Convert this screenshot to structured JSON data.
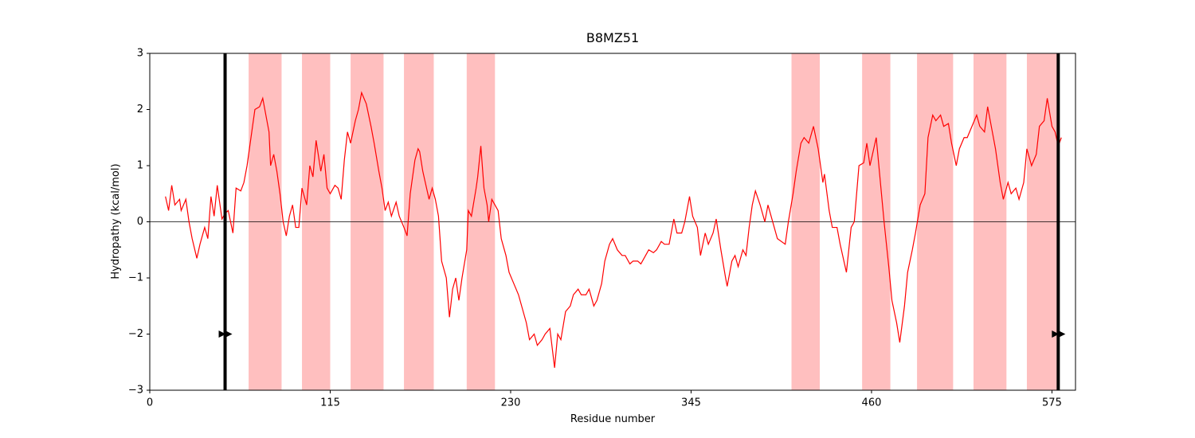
{
  "chart_data": {
    "type": "line",
    "title": "B8MZ51",
    "xlabel": "Residue number",
    "ylabel": "Hydropathy (kcal/mol)",
    "color": "#ff0000",
    "xlim": [
      0,
      590
    ],
    "ylim": [
      -3,
      3
    ],
    "xticks": [
      0,
      115,
      230,
      345,
      460,
      575
    ],
    "yticks": [
      {
        "value": -3,
        "label": "−3"
      },
      {
        "value": -2,
        "label": "−2"
      },
      {
        "value": -1,
        "label": "−1"
      },
      0,
      1,
      2,
      3
    ],
    "hline": 0,
    "shade_color": "#ffbfbf",
    "shaded_regions": [
      [
        63,
        84
      ],
      [
        97,
        115
      ],
      [
        128,
        149
      ],
      [
        162,
        181
      ],
      [
        202,
        220
      ],
      [
        409,
        427
      ],
      [
        454,
        472
      ],
      [
        489,
        512
      ],
      [
        525,
        546
      ],
      [
        559,
        579
      ]
    ],
    "vlines": [
      48,
      579
    ],
    "markers": [
      {
        "x": 48,
        "y": -2
      },
      {
        "x": 579,
        "y": -2
      }
    ],
    "x": [
      10,
      12,
      14,
      16,
      19,
      20,
      23,
      25,
      27,
      30,
      32,
      35,
      37,
      39,
      41,
      43,
      46,
      48,
      50,
      53,
      55,
      58,
      60,
      62,
      65,
      67,
      70,
      72,
      74,
      76,
      77,
      79,
      81,
      83,
      85,
      87,
      89,
      91,
      93,
      95,
      97,
      100,
      102,
      104,
      106,
      109,
      111,
      113,
      115,
      118,
      120,
      122,
      124,
      126,
      128,
      131,
      133,
      135,
      138,
      141,
      143,
      146,
      148,
      150,
      152,
      154,
      157,
      159,
      162,
      164,
      166,
      169,
      171,
      172,
      174,
      176,
      178,
      180,
      182,
      184,
      186,
      189,
      191,
      193,
      195,
      197,
      199,
      202,
      203,
      205,
      208,
      209,
      211,
      213,
      215,
      216,
      218,
      222,
      224,
      227,
      229,
      232,
      235,
      237,
      240,
      242,
      245,
      247,
      250,
      252,
      255,
      258,
      260,
      262,
      265,
      268,
      270,
      273,
      275,
      278,
      280,
      283,
      285,
      288,
      290,
      293,
      295,
      298,
      301,
      303,
      306,
      308,
      311,
      313,
      316,
      318,
      321,
      323,
      326,
      328,
      331,
      334,
      336,
      339,
      341,
      344,
      346,
      349,
      351,
      354,
      356,
      359,
      361,
      364,
      367,
      368,
      371,
      373,
      375,
      378,
      380,
      382,
      384,
      386,
      389,
      392,
      394,
      396,
      400,
      405,
      407,
      410,
      412,
      415,
      417,
      420,
      423,
      426,
      429,
      430,
      433,
      435,
      438,
      440,
      444,
      447,
      449,
      452,
      455,
      457,
      459,
      463,
      466,
      468,
      471,
      473,
      476,
      478,
      481,
      483,
      486,
      488,
      491,
      494,
      496,
      499,
      501,
      504,
      506,
      509,
      511,
      514,
      516,
      519,
      521,
      524,
      527,
      529,
      532,
      534,
      537,
      539,
      542,
      544,
      547,
      549,
      552,
      554,
      557,
      559,
      562,
      565,
      567,
      570,
      572,
      575,
      577,
      579,
      581
    ],
    "values": [
      0.45,
      0.2,
      0.65,
      0.3,
      0.4,
      0.2,
      0.4,
      0.0,
      -0.3,
      -0.65,
      -0.4,
      -0.1,
      -0.3,
      0.45,
      0.1,
      0.65,
      0.05,
      0.15,
      0.2,
      -0.2,
      0.6,
      0.55,
      0.7,
      1.0,
      1.6,
      2.0,
      2.05,
      2.2,
      1.9,
      1.6,
      1.0,
      1.2,
      0.9,
      0.5,
      0.0,
      -0.25,
      0.1,
      0.3,
      -0.1,
      -0.1,
      0.6,
      0.3,
      1.0,
      0.8,
      1.45,
      0.9,
      1.2,
      0.6,
      0.5,
      0.65,
      0.6,
      0.4,
      1.1,
      1.6,
      1.4,
      1.8,
      2.0,
      2.3,
      2.1,
      1.7,
      1.4,
      0.9,
      0.6,
      0.2,
      0.35,
      0.1,
      0.35,
      0.1,
      -0.1,
      -0.25,
      0.5,
      1.1,
      1.3,
      1.25,
      0.9,
      0.65,
      0.4,
      0.6,
      0.4,
      0.1,
      -0.7,
      -1.0,
      -1.7,
      -1.2,
      -1.0,
      -1.4,
      -1.0,
      -0.5,
      0.2,
      0.1,
      0.6,
      0.8,
      1.35,
      0.6,
      0.3,
      0.0,
      0.4,
      0.2,
      -0.3,
      -0.6,
      -0.9,
      -1.1,
      -1.3,
      -1.5,
      -1.8,
      -2.1,
      -2.0,
      -2.2,
      -2.1,
      -2.0,
      -1.9,
      -2.6,
      -2.0,
      -2.1,
      -1.6,
      -1.5,
      -1.3,
      -1.2,
      -1.3,
      -1.3,
      -1.2,
      -1.5,
      -1.4,
      -1.1,
      -0.7,
      -0.4,
      -0.3,
      -0.5,
      -0.6,
      -0.6,
      -0.75,
      -0.7,
      -0.7,
      -0.75,
      -0.6,
      -0.5,
      -0.55,
      -0.5,
      -0.35,
      -0.4,
      -0.4,
      0.05,
      -0.2,
      -0.2,
      0.0,
      0.45,
      0.1,
      -0.1,
      -0.6,
      -0.2,
      -0.4,
      -0.2,
      0.05,
      -0.5,
      -1.0,
      -1.15,
      -0.7,
      -0.6,
      -0.8,
      -0.5,
      -0.6,
      -0.1,
      0.3,
      0.55,
      0.3,
      0.0,
      0.3,
      0.1,
      -0.3,
      -0.4,
      0.0,
      0.5,
      0.9,
      1.4,
      1.5,
      1.4,
      1.7,
      1.3,
      0.7,
      0.85,
      0.2,
      -0.1,
      -0.1,
      -0.4,
      -0.9,
      -0.1,
      0.0,
      1.0,
      1.05,
      1.4,
      1.0,
      1.5,
      0.6,
      0.0,
      -0.8,
      -1.4,
      -1.8,
      -2.15,
      -1.5,
      -0.9,
      -0.5,
      -0.2,
      0.3,
      0.5,
      1.5,
      1.9,
      1.8,
      1.9,
      1.7,
      1.75,
      1.4,
      1.0,
      1.3,
      1.5,
      1.5,
      1.7,
      1.9,
      1.7,
      1.6,
      2.05,
      1.6,
      1.3,
      0.7,
      0.4,
      0.7,
      0.5,
      0.6,
      0.4,
      0.7,
      1.3,
      1.0,
      1.2,
      1.7,
      1.8,
      2.2,
      1.7,
      1.6,
      1.35,
      1.5
    ]
  }
}
